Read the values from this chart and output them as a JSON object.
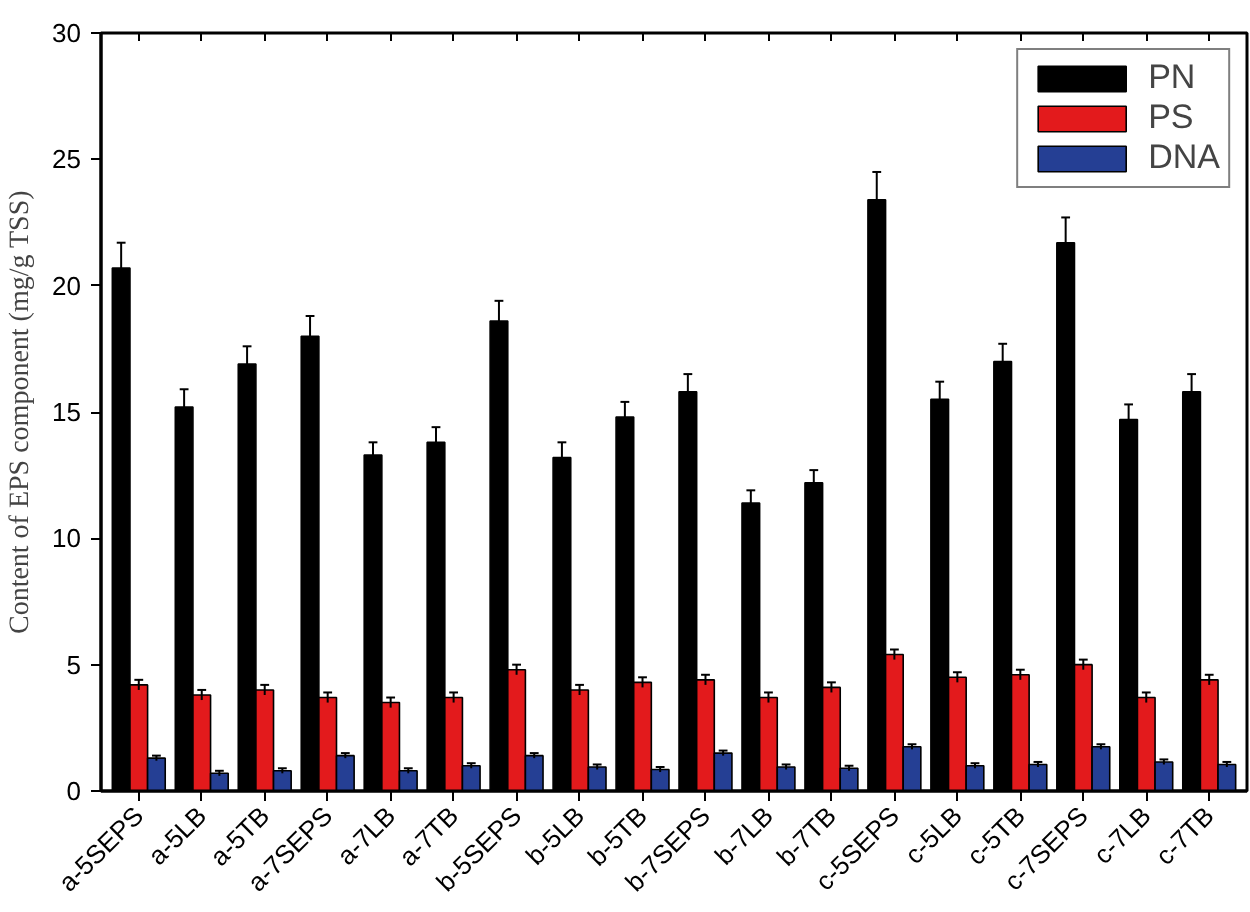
{
  "chart_data": {
    "type": "bar",
    "ylabel": "Content of EPS component (mg/g TSS)",
    "categories": [
      "a-5SEPS",
      "a-5LB",
      "a-5TB",
      "a-7SEPS",
      "a-7LB",
      "a-7TB",
      "b-5SEPS",
      "b-5LB",
      "b-5TB",
      "b-7SEPS",
      "b-7LB",
      "b-7TB",
      "c-5SEPS",
      "c-5LB",
      "c-5TB",
      "c-7SEPS",
      "c-7LB",
      "c-7TB"
    ],
    "series": [
      {
        "name": "PN",
        "color": "#000000",
        "values": [
          20.7,
          15.2,
          16.9,
          18.0,
          13.3,
          13.8,
          18.6,
          13.2,
          14.8,
          15.8,
          11.4,
          12.2,
          23.4,
          15.5,
          17.0,
          21.7,
          14.7,
          15.8
        ],
        "errors": [
          1.0,
          0.7,
          0.7,
          0.8,
          0.5,
          0.6,
          0.8,
          0.6,
          0.6,
          0.7,
          0.5,
          0.5,
          1.1,
          0.7,
          0.7,
          1.0,
          0.6,
          0.7
        ]
      },
      {
        "name": "PS",
        "color": "#e31a1c",
        "values": [
          4.2,
          3.8,
          4.0,
          3.7,
          3.5,
          3.7,
          4.8,
          4.0,
          4.3,
          4.4,
          3.7,
          4.1,
          5.4,
          4.5,
          4.6,
          5.0,
          3.7,
          4.4
        ],
        "errors": [
          0.2,
          0.2,
          0.2,
          0.2,
          0.2,
          0.2,
          0.2,
          0.2,
          0.2,
          0.2,
          0.2,
          0.2,
          0.2,
          0.2,
          0.2,
          0.2,
          0.2,
          0.2
        ]
      },
      {
        "name": "DNA",
        "color": "#253f94",
        "values": [
          1.3,
          0.7,
          0.8,
          1.4,
          0.8,
          1.0,
          1.4,
          0.95,
          0.85,
          1.5,
          0.95,
          0.9,
          1.75,
          1.0,
          1.05,
          1.75,
          1.15,
          1.05
        ],
        "errors": [
          0.1,
          0.1,
          0.1,
          0.1,
          0.1,
          0.1,
          0.1,
          0.1,
          0.1,
          0.1,
          0.1,
          0.1,
          0.1,
          0.1,
          0.1,
          0.1,
          0.1,
          0.1
        ]
      }
    ],
    "ylim": [
      0,
      30
    ],
    "yticks": [
      0,
      5,
      10,
      15,
      20,
      25,
      30
    ],
    "grid": false,
    "legend": "top right"
  }
}
